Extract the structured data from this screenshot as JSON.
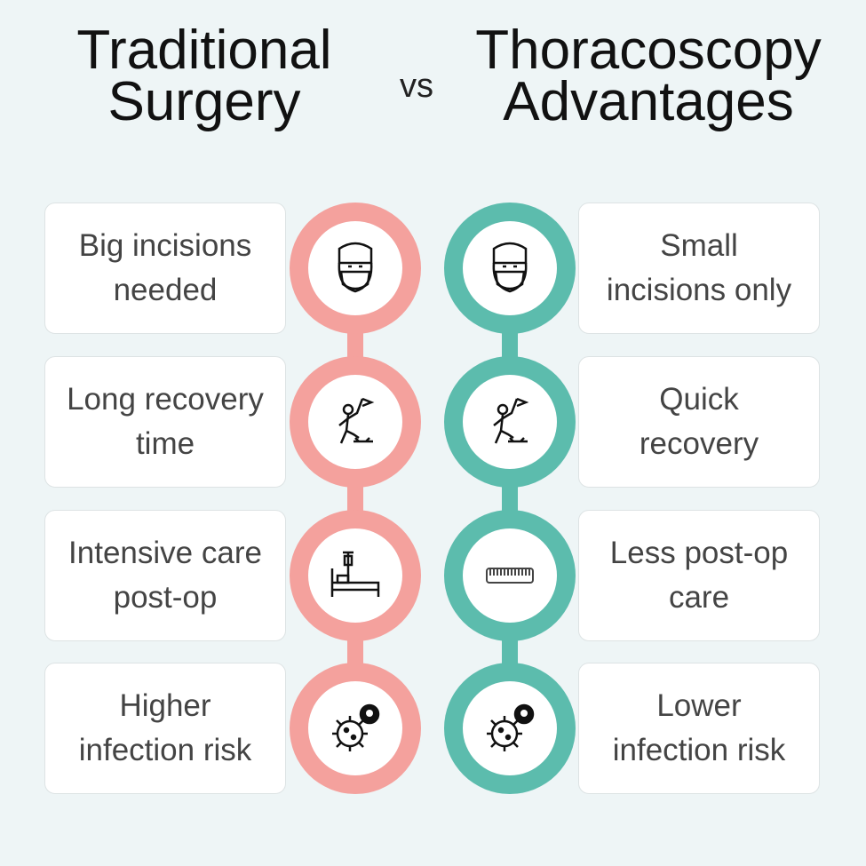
{
  "header": {
    "left_title": [
      "Traditional",
      "Surgery"
    ],
    "vs": "vs",
    "right_title": [
      "Thoracoscopy",
      "Advantages"
    ]
  },
  "rows": [
    {
      "left": [
        "Big incisions",
        "needed"
      ],
      "right": [
        "Small",
        "incisions only"
      ]
    },
    {
      "left": [
        "Long recovery",
        "time"
      ],
      "right": [
        "Quick",
        "recovery"
      ]
    },
    {
      "left": [
        "Intensive care",
        "post-op"
      ],
      "right": [
        "Less post-op",
        "care"
      ]
    },
    {
      "left": [
        "Higher",
        "infection risk"
      ],
      "right": [
        "Lower",
        "infection risk"
      ]
    }
  ]
}
